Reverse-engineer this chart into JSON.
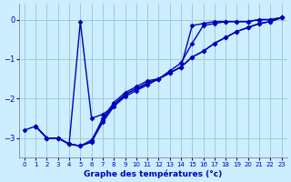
{
  "xlabel": "Graphe des températures (°c)",
  "xlim": [
    -0.5,
    23.5
  ],
  "ylim": [
    -3.5,
    0.4
  ],
  "yticks": [
    0,
    -1,
    -2,
    -3
  ],
  "xticks": [
    0,
    1,
    2,
    3,
    4,
    5,
    6,
    7,
    8,
    9,
    10,
    11,
    12,
    13,
    14,
    15,
    16,
    17,
    18,
    19,
    20,
    21,
    22,
    23
  ],
  "bg_color": "#cceeff",
  "grid_color": "#99ccdd",
  "line_color": "#0000bb",
  "line_width": 1.0,
  "marker": "D",
  "marker_size": 2.5,
  "series": [
    [
      null,
      -2.7,
      -3.0,
      -3.0,
      -3.15,
      -3.2,
      -3.05,
      -2.55,
      -2.15,
      -1.9,
      -1.75,
      -1.6,
      -1.5,
      -1.35,
      -1.2,
      -0.95,
      -0.8,
      -0.6,
      -0.45,
      -0.3,
      -0.2,
      -0.1,
      -0.05,
      0.05
    ],
    [
      null,
      -2.7,
      -3.0,
      -3.0,
      -3.15,
      -3.2,
      -3.1,
      -2.5,
      -2.1,
      -1.85,
      -1.7,
      -1.55,
      -1.5,
      -1.3,
      -1.1,
      -0.6,
      -0.15,
      -0.1,
      -0.05,
      -0.05,
      -0.05,
      0.0,
      0.0,
      0.05
    ],
    [
      null,
      -2.7,
      -3.0,
      -3.0,
      -3.15,
      -0.05,
      -2.5,
      -2.4,
      -2.2,
      -1.9,
      -1.75,
      -1.65,
      -1.5,
      -1.35,
      -1.2,
      -0.15,
      -0.1,
      -0.05,
      -0.05,
      -0.05,
      -0.05,
      0.0,
      0.0,
      0.05
    ],
    [
      -2.8,
      -2.7,
      -3.0,
      -3.0,
      -3.15,
      -3.2,
      -3.1,
      -2.6,
      -2.2,
      -1.95,
      -1.8,
      -1.65,
      -1.5,
      -1.35,
      -1.2,
      -0.95,
      -0.8,
      -0.6,
      -0.45,
      -0.3,
      -0.2,
      -0.1,
      -0.05,
      0.05
    ]
  ]
}
